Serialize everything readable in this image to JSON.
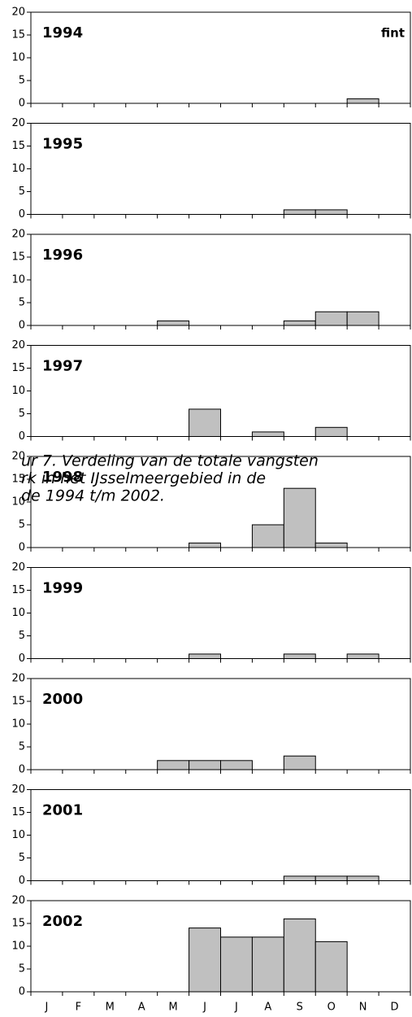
{
  "chart_data": [
    {
      "type": "bar",
      "title": "1994",
      "label": "fint",
      "categories": [
        null,
        null,
        null,
        null,
        null,
        null,
        null,
        null,
        null,
        null,
        null,
        null
      ],
      "values": [
        0,
        0,
        0,
        0,
        0,
        0,
        0,
        0,
        0,
        0,
        1,
        0
      ],
      "color": "#c0c0c0",
      "ylim": [
        0,
        20
      ],
      "yticks": [
        0,
        5,
        10,
        15,
        20
      ]
    },
    {
      "type": "bar",
      "title": "1995",
      "categories": [
        null,
        null,
        null,
        null,
        null,
        null,
        null,
        null,
        null,
        null,
        null,
        null
      ],
      "values": [
        0,
        0,
        0,
        0,
        0,
        0,
        0,
        0,
        1,
        1,
        0,
        0
      ],
      "color": "#c0c0c0",
      "ylim": [
        0,
        20
      ],
      "yticks": [
        0,
        5,
        10,
        15,
        20
      ]
    },
    {
      "type": "bar",
      "title": "1996",
      "categories": [
        null,
        null,
        null,
        null,
        null,
        null,
        null,
        null,
        null,
        null,
        null,
        null
      ],
      "values": [
        0,
        0,
        0,
        0,
        1,
        0,
        0,
        0,
        1,
        3,
        3,
        0
      ],
      "color": "#c0c0c0",
      "ylim": [
        0,
        20
      ],
      "yticks": [
        0,
        5,
        10,
        15,
        20
      ]
    },
    {
      "type": "bar",
      "title": "1997",
      "categories": [
        null,
        null,
        null,
        null,
        null,
        null,
        null,
        null,
        null,
        null,
        null,
        null
      ],
      "values": [
        0,
        0,
        0,
        0,
        0,
        6,
        0,
        1,
        0,
        2,
        0,
        0
      ],
      "color": "#c0c0c0",
      "ylim": [
        0,
        20
      ],
      "yticks": [
        0,
        5,
        10,
        15,
        20
      ]
    },
    {
      "type": "bar",
      "title": "1998",
      "categories": [
        null,
        null,
        null,
        null,
        null,
        null,
        null,
        null,
        null,
        null,
        null,
        null
      ],
      "values": [
        0,
        0,
        0,
        0,
        0,
        1,
        0,
        5,
        13,
        1,
        0,
        0
      ],
      "color": "#c0c0c0",
      "ylim": [
        0,
        20
      ],
      "yticks": [
        0,
        5,
        10,
        15,
        20
      ]
    },
    {
      "type": "bar",
      "title": "1999",
      "categories": [
        null,
        null,
        null,
        null,
        null,
        null,
        null,
        null,
        null,
        null,
        null,
        null
      ],
      "values": [
        0,
        0,
        0,
        0,
        0,
        1,
        0,
        0,
        1,
        0,
        1,
        0
      ],
      "color": "#c0c0c0",
      "ylim": [
        0,
        20
      ],
      "yticks": [
        0,
        5,
        10,
        15,
        20
      ]
    },
    {
      "type": "bar",
      "title": "2000",
      "categories": [
        null,
        null,
        null,
        null,
        null,
        null,
        null,
        null,
        null,
        null,
        null,
        null
      ],
      "values": [
        0,
        0,
        0,
        0,
        2,
        2,
        2,
        0,
        3,
        0,
        0,
        0
      ],
      "color": "#c0c0c0",
      "ylim": [
        0,
        20
      ],
      "yticks": [
        0,
        5,
        10,
        15,
        20
      ]
    },
    {
      "type": "bar",
      "title": "2001",
      "categories": [
        null,
        null,
        null,
        null,
        null,
        null,
        null,
        null,
        null,
        null,
        null,
        null
      ],
      "values": [
        0,
        0,
        0,
        0,
        0,
        0,
        0,
        0,
        1,
        1,
        1,
        0
      ],
      "color": "#c0c0c0",
      "ylim": [
        0,
        20
      ],
      "yticks": [
        0,
        5,
        10,
        15,
        20
      ]
    },
    {
      "type": "bar",
      "title": "2002",
      "categories": [
        "J",
        "F",
        "M",
        "A",
        "M",
        "J",
        "J",
        "A",
        "S",
        "O",
        "N",
        "D"
      ],
      "values": [
        0,
        0,
        0,
        0,
        0,
        14,
        12,
        12,
        16,
        11,
        0,
        0
      ],
      "color": "#c0c0c0",
      "ylim": [
        0,
        20
      ],
      "yticks": [
        0,
        5,
        10,
        15,
        20
      ]
    }
  ],
  "overlay_text": [
    "ur 7. Verdeling van de totale vangsten",
    "rk in het IJsselmeergebied in de",
    "de 1994 t/m 2002."
  ]
}
